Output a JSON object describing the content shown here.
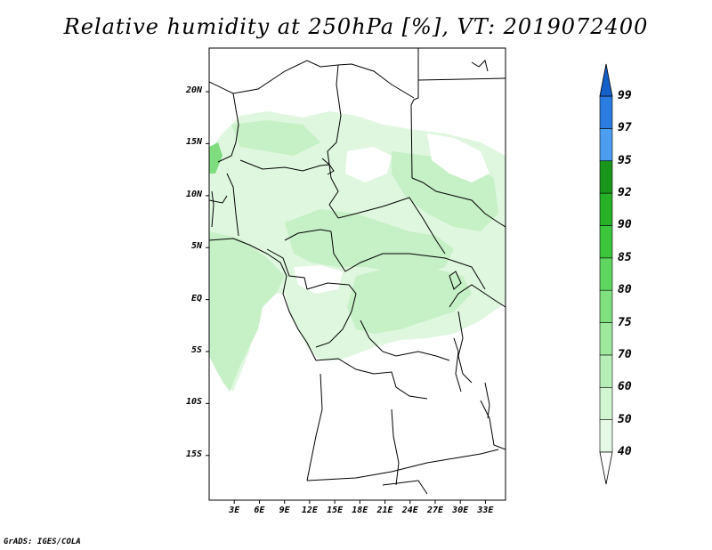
{
  "title": "Relative humidity at 250hPa [%], VT: 2019072400",
  "credit": "GrADS: IGES/COLA",
  "map": {
    "lat_labels": [
      "20N",
      "15N",
      "10N",
      "5N",
      "EQ",
      "5S",
      "10S",
      "15S"
    ],
    "lat_values": [
      20,
      15,
      10,
      5,
      0,
      -5,
      -10,
      -15
    ],
    "lon_labels": [
      "3E",
      "6E",
      "9E",
      "12E",
      "15E",
      "18E",
      "21E",
      "24E",
      "27E",
      "30E",
      "33E"
    ],
    "lon_values": [
      3,
      6,
      9,
      12,
      15,
      18,
      21,
      24,
      27,
      30,
      33
    ]
  },
  "colorbar": {
    "levels": [
      "40",
      "50",
      "60",
      "70",
      "75",
      "80",
      "85",
      "90",
      "92",
      "95",
      "97",
      "99"
    ],
    "colors": [
      "#f0fcf0",
      "#e6f9e6",
      "#d2f5d2",
      "#b8efb8",
      "#9fe99f",
      "#80e080",
      "#5fd65f",
      "#3cc63c",
      "#26b026",
      "#1a961a",
      "#4c9ff0",
      "#2a7ce0",
      "#1560c8"
    ],
    "below_color": "#ffffff",
    "above_color": "#1560c8"
  },
  "palette": {
    "humid_light": "#dff7df",
    "humid_mid": "#c6f0c6",
    "humid_dark": "#a9e8a9",
    "humid_accent": "#7fdc7f"
  }
}
